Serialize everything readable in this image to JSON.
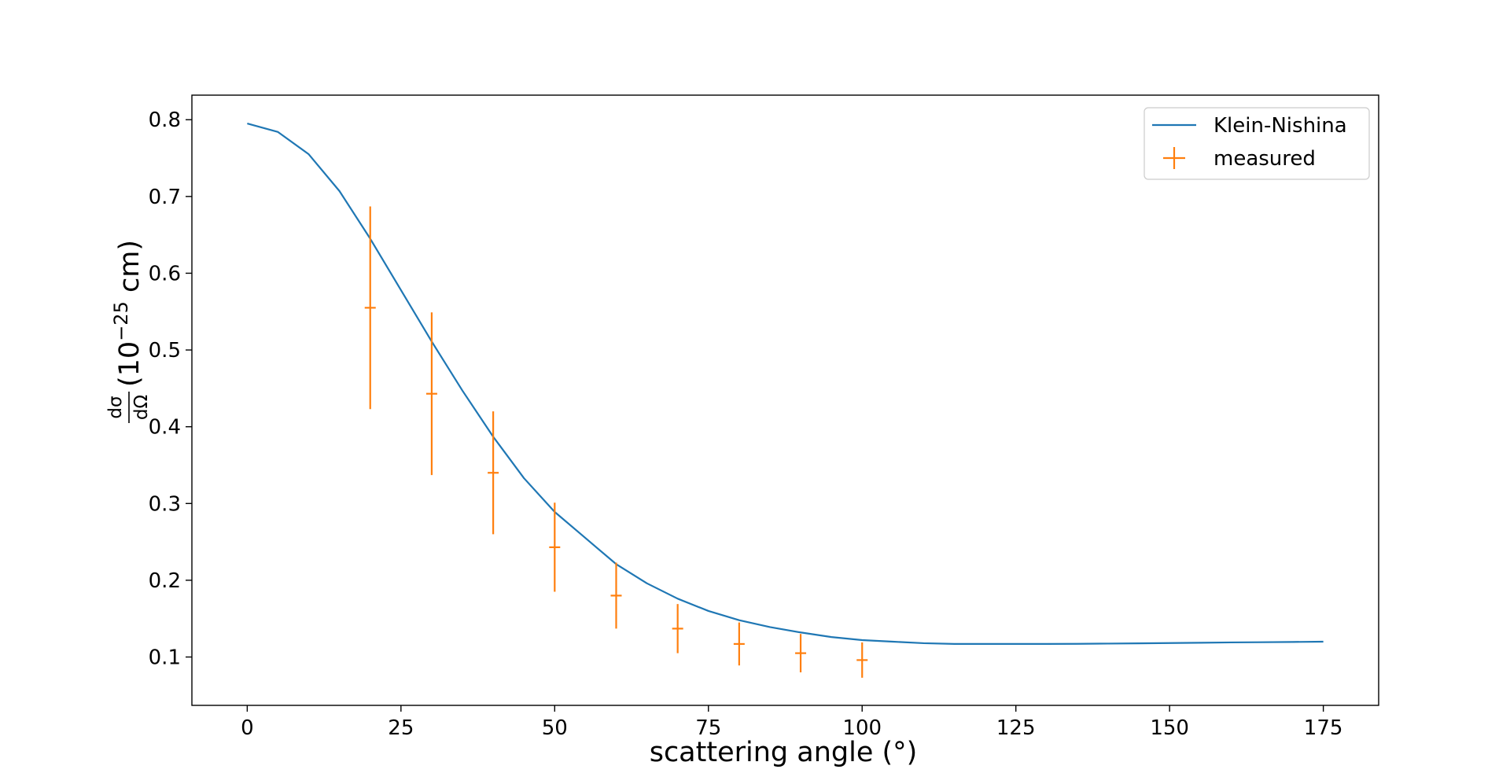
{
  "chart_data": {
    "type": "line",
    "title": "",
    "xlabel": "scattering angle (°)",
    "ylabel": {
      "fraction_numerator": "dσ",
      "fraction_denominator": "dΩ",
      "unit_open": "(10",
      "unit_exponent": "−25",
      "unit_close": " cm)"
    },
    "xlim": [
      -9,
      184
    ],
    "ylim": [
      0.037,
      0.832
    ],
    "xticks": [
      0,
      25,
      50,
      75,
      100,
      125,
      150,
      175
    ],
    "yticks": [
      0.1,
      0.2,
      0.3,
      0.4,
      0.5,
      0.6,
      0.7,
      0.8
    ],
    "grid": false,
    "legend_placement": "upper right",
    "series": [
      {
        "name": "Klein-Nishina",
        "kind": "line",
        "color": "#1f77b4",
        "x": [
          0,
          5,
          10,
          15,
          20,
          25,
          30,
          35,
          40,
          45,
          50,
          55,
          60,
          65,
          70,
          75,
          80,
          85,
          90,
          95,
          100,
          105,
          110,
          115,
          120,
          125,
          130,
          135,
          140,
          145,
          150,
          155,
          160,
          165,
          170,
          175
        ],
        "y": [
          0.795,
          0.784,
          0.755,
          0.707,
          0.645,
          0.578,
          0.511,
          0.447,
          0.387,
          0.333,
          0.289,
          0.255,
          0.221,
          0.196,
          0.176,
          0.16,
          0.148,
          0.139,
          0.132,
          0.126,
          0.122,
          0.12,
          0.118,
          0.117,
          0.117,
          0.117,
          0.117,
          0.1172,
          0.1175,
          0.1178,
          0.1182,
          0.1186,
          0.119,
          0.1193,
          0.1196,
          0.12
        ]
      },
      {
        "name": "measured",
        "kind": "errorbar",
        "color": "#ff7f0e",
        "x": [
          20,
          30,
          40,
          50,
          60,
          70,
          80,
          90,
          100
        ],
        "y": [
          0.555,
          0.443,
          0.34,
          0.243,
          0.18,
          0.137,
          0.117,
          0.105,
          0.096
        ],
        "yerr_low": [
          0.132,
          0.106,
          0.08,
          0.058,
          0.043,
          0.032,
          0.028,
          0.025,
          0.023
        ],
        "yerr_high": [
          0.132,
          0.106,
          0.08,
          0.058,
          0.043,
          0.032,
          0.028,
          0.025,
          0.023
        ]
      }
    ]
  }
}
